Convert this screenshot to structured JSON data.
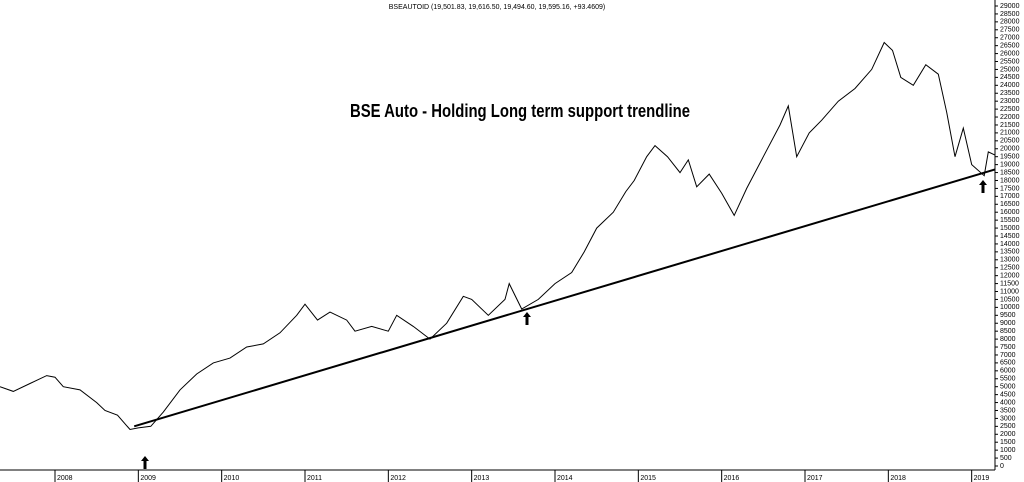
{
  "chart_data": {
    "type": "line",
    "title": "BSEAUTOID (19,501.83, 19,616.50, 19,494.60, 19,595.16, +93.4609)",
    "annotation": "BSE Auto - Holding Long term support trendline",
    "x": [
      2007.34,
      2007.5,
      2007.7,
      2007.9,
      2008.0,
      2008.1,
      2008.3,
      2008.5,
      2008.6,
      2008.75,
      2008.9,
      2009.0,
      2009.15,
      2009.3,
      2009.5,
      2009.7,
      2009.9,
      2010.1,
      2010.3,
      2010.5,
      2010.7,
      2010.9,
      2011.0,
      2011.15,
      2011.3,
      2011.5,
      2011.6,
      2011.8,
      2012.0,
      2012.1,
      2012.3,
      2012.5,
      2012.7,
      2012.9,
      2013.0,
      2013.2,
      2013.4,
      2013.45,
      2013.6,
      2013.8,
      2014.0,
      2014.2,
      2014.35,
      2014.5,
      2014.7,
      2014.85,
      2014.95,
      2015.1,
      2015.2,
      2015.35,
      2015.5,
      2015.6,
      2015.7,
      2015.85,
      2016.0,
      2016.15,
      2016.3,
      2016.5,
      2016.7,
      2016.8,
      2016.9,
      2017.05,
      2017.2,
      2017.4,
      2017.6,
      2017.8,
      2017.95,
      2018.05,
      2018.15,
      2018.3,
      2018.45,
      2018.6,
      2018.7,
      2018.8,
      2018.9,
      2019.0,
      2019.15,
      2019.2,
      2019.28
    ],
    "series": [
      {
        "name": "BSEAUTOID",
        "color": "#000000",
        "values": [
          5000,
          4700,
          5200,
          5700,
          5600,
          5000,
          4800,
          4000,
          3500,
          3200,
          2300,
          2400,
          2500,
          3400,
          4800,
          5800,
          6500,
          6800,
          7500,
          7700,
          8400,
          9500,
          10200,
          9200,
          9700,
          9200,
          8500,
          8800,
          8500,
          9500,
          8800,
          8000,
          9000,
          10700,
          10500,
          9500,
          10500,
          11500,
          9900,
          10500,
          11500,
          12200,
          13500,
          15000,
          16000,
          17300,
          18000,
          19500,
          20200,
          19500,
          18500,
          19300,
          17600,
          18400,
          17200,
          15800,
          17500,
          19500,
          21500,
          22700,
          19500,
          21000,
          21800,
          23000,
          23800,
          25000,
          26700,
          26200,
          24500,
          24000,
          25300,
          24700,
          22300,
          19500,
          21300,
          19000,
          18300,
          19800,
          19600
        ]
      }
    ],
    "trendline": {
      "x": [
        2008.95,
        2019.28
      ],
      "values": [
        2500,
        18700
      ]
    },
    "xlim": [
      2007.34,
      2019.28
    ],
    "xticks": [
      2008,
      2009,
      2010,
      2011,
      2012,
      2013,
      2014,
      2015,
      2016,
      2017,
      2018,
      2019
    ],
    "ylim": [
      0,
      29000
    ],
    "yticks": [
      0,
      500,
      1000,
      1500,
      2000,
      2500,
      3000,
      3500,
      4000,
      4500,
      5000,
      5500,
      6000,
      6500,
      7000,
      7500,
      8000,
      8500,
      9000,
      9500,
      10000,
      10500,
      11000,
      11500,
      12000,
      12500,
      13000,
      13500,
      14000,
      14500,
      15000,
      15500,
      16000,
      16500,
      17000,
      17500,
      18000,
      18500,
      19000,
      19500,
      20000,
      20500,
      21000,
      21500,
      22000,
      22500,
      23000,
      23500,
      24000,
      24500,
      25000,
      25500,
      26000,
      26500,
      27000,
      27500,
      28000,
      28500,
      29000
    ]
  }
}
